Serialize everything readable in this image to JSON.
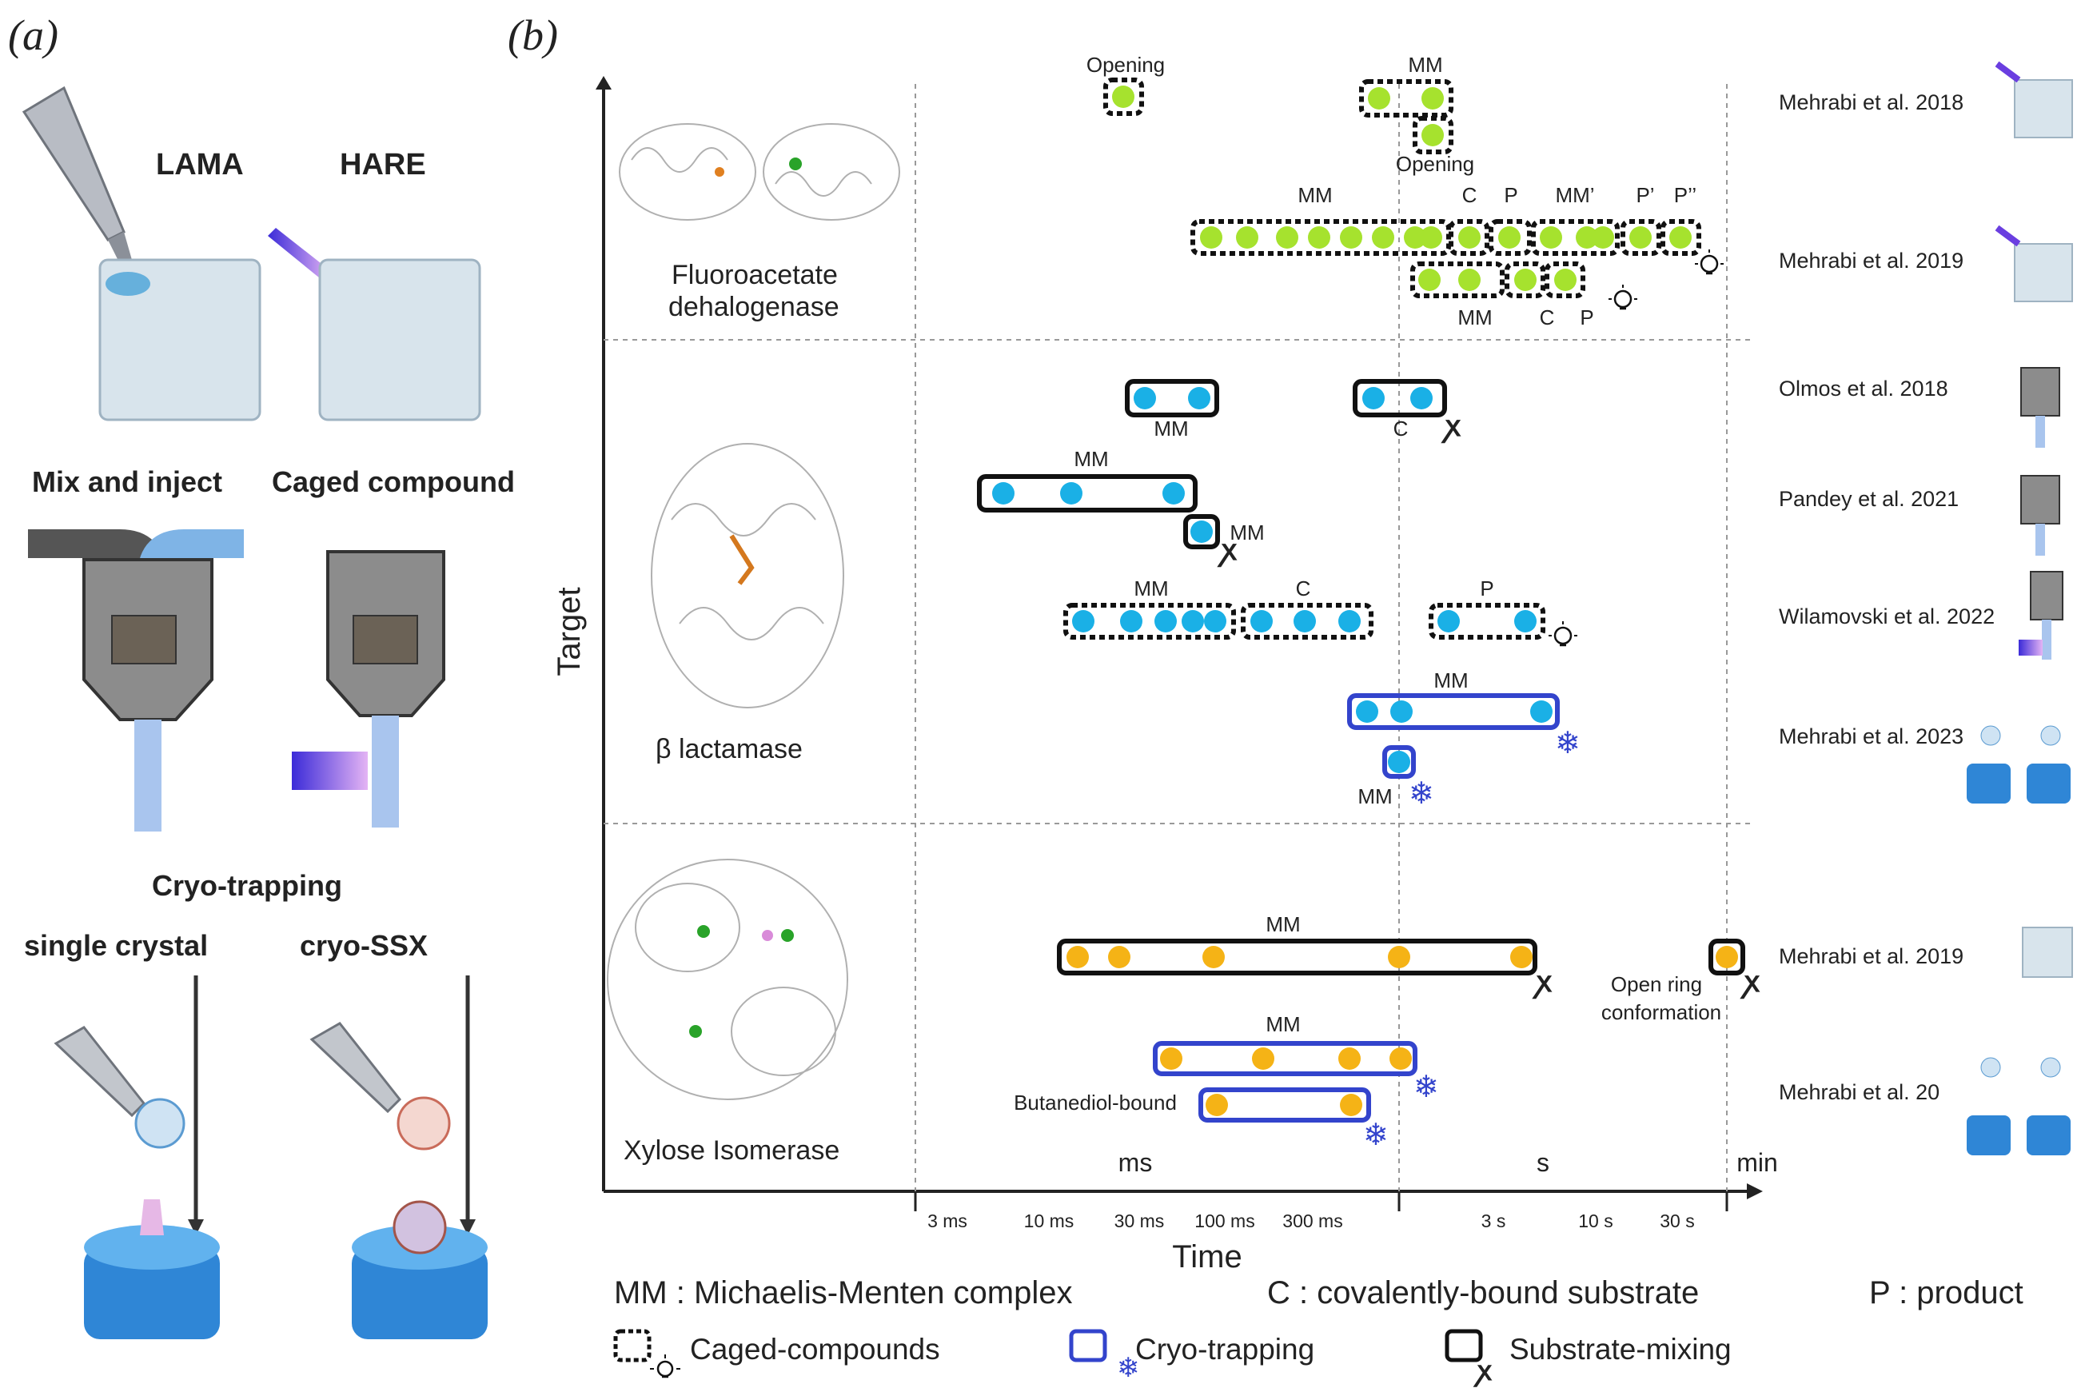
{
  "panel_a": {
    "panel_label": "(a)",
    "lama_label": "LAMA",
    "hare_label": "HARE",
    "mix_label": "Mix and inject",
    "caged_label": "Caged compound",
    "cryo_title": "Cryo-trapping",
    "single_crystal_label": "single crystal",
    "cryo_ssx_label": "cryo-SSX"
  },
  "panel_b": {
    "panel_label": "(b)",
    "y_axis_label": "Target",
    "x_axis_label": "Time",
    "unit_labels": [
      "ms",
      "s",
      "min"
    ],
    "ticks": [
      "3 ms",
      "10 ms",
      "30 ms",
      "100 ms",
      "300 ms",
      "3 s",
      "10 s",
      "30 s"
    ],
    "targets": [
      "Fluoroacetate\ndehalogenase",
      "β lactamase",
      "Xylose Isomerase"
    ],
    "colors": {
      "dehalogenase": "#a6e22e",
      "lactamase": "#1ab0e6",
      "isomerase": "#f5b316",
      "cryo": "#3344cc",
      "mixing": "#111111"
    },
    "state_labels": {
      "opening_1": "Opening",
      "mm_1": "MM",
      "opening_2": "Opening",
      "mm_2": "MM",
      "c_2": "C",
      "p_2": "P",
      "mm_prime": "MM’",
      "p_prime": "P’",
      "p_dprime": "P’’",
      "mm_3": "MM",
      "c_3": "C",
      "p_3": "P",
      "bl_mm_1": "MM",
      "bl_c_1": "C",
      "bl_mm_2": "MM",
      "bl_mm_3": "MM",
      "bl_mm_4": "MM",
      "bl_c_4": "C",
      "bl_p_4": "P",
      "bl_mm_5": "MM",
      "bl_mm_6": "MM",
      "xi_mm_1": "MM",
      "xi_open_1": "Open ring",
      "xi_open_2": "conformation",
      "xi_mm_2": "MM",
      "xi_butane": "Butanediol-bound"
    },
    "references": [
      "Mehrabi et al. 2018",
      "Mehrabi et al. 2019",
      "Olmos et al. 2018",
      "Pandey et al. 2021",
      "Wilamovski et al. 2022",
      "Mehrabi et al. 2023",
      "Mehrabi et al. 2019",
      "Mehrabi et al. 20"
    ]
  },
  "legend": {
    "mm_def": "MM : Michaelis-Menten complex",
    "c_def": "C : covalently-bound substrate",
    "p_def": "P : product",
    "caged": "Caged-compounds",
    "cryo": "Cryo-trapping",
    "mixing": "Substrate-mixing"
  }
}
